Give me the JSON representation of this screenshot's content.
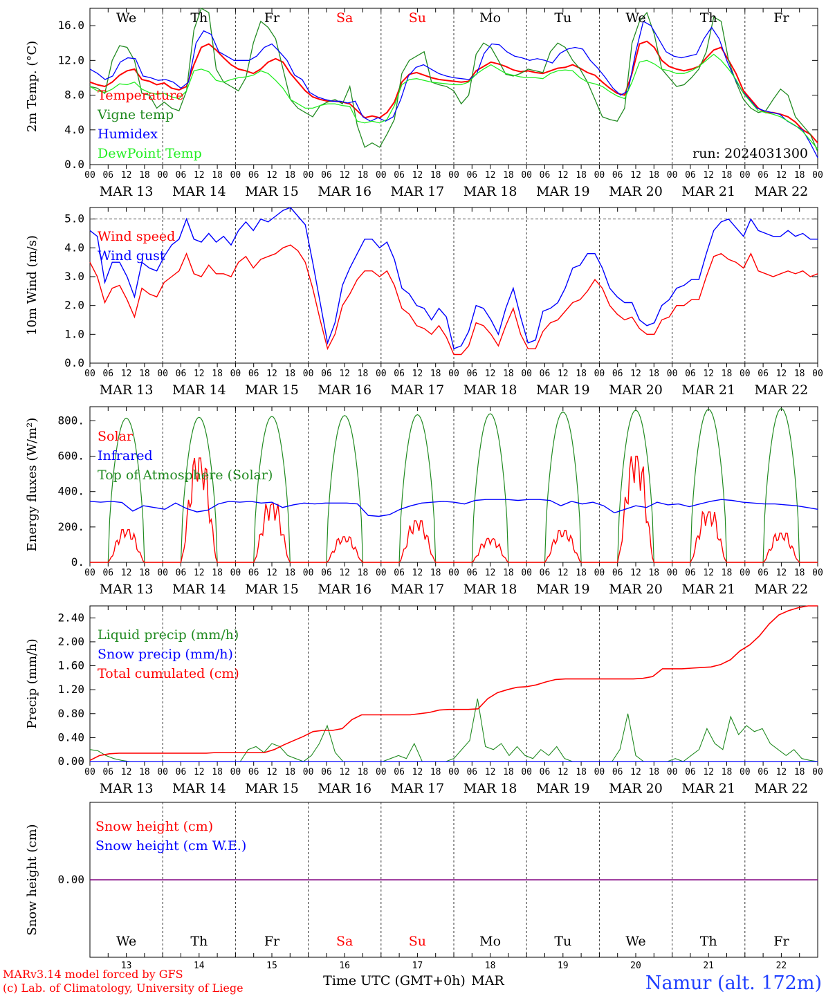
{
  "days": [
    "MAR 13",
    "MAR 14",
    "MAR 15",
    "MAR 16",
    "MAR 17",
    "MAR 18",
    "MAR 19",
    "MAR 20",
    "MAR 21",
    "MAR 22"
  ],
  "day_numbers": [
    "13",
    "14",
    "15",
    "16",
    "17",
    "18",
    "19",
    "20",
    "21",
    "22"
  ],
  "weekdays": [
    "We",
    "Th",
    "Fr",
    "Sa",
    "Su",
    "Mo",
    "Tu",
    "We",
    "Th",
    "Fr"
  ],
  "hour_ticks": [
    "00",
    "06",
    "12",
    "18"
  ],
  "weekday_colors": [
    "#000000",
    "#000000",
    "#000000",
    "#ff0000",
    "#ff0000",
    "#000000",
    "#000000",
    "#000000",
    "#000000",
    "#000000"
  ],
  "run_label": "run: 2024031300",
  "footer": {
    "credit1": "MARv3.14 model forced by GFS",
    "credit2": "(c) Lab. of Climatology, University of Liege",
    "xlabel": "Time UTC (GMT+0h)",
    "month": "MAR",
    "station": "Namur (alt. 172m)"
  },
  "colors": {
    "red": "#ff0000",
    "darkgreen": "#228b22",
    "blue": "#0000ff",
    "lightgreen": "#22ee22",
    "purple": "#800080"
  },
  "chart_data": [
    {
      "type": "line",
      "ylabel": "2m Temp. (°C)",
      "ylim": [
        0,
        18
      ],
      "yticks": [
        0,
        4,
        8,
        12,
        16
      ],
      "ytick_labels": [
        "0.0",
        "4.0",
        "8.0",
        "12.0",
        "16.0"
      ],
      "series": [
        {
          "name": "Temperature",
          "color": "#ff0000",
          "values": [
            9.5,
            9.2,
            9.0,
            9.5,
            10.3,
            10.8,
            11.0,
            9.8,
            9.6,
            9.2,
            9.4,
            8.8,
            8.6,
            9.0,
            11.5,
            13.5,
            13.9,
            13.2,
            12.3,
            11.5,
            11.0,
            10.8,
            10.5,
            11.0,
            11.8,
            12.2,
            11.8,
            10.5,
            9.5,
            8.5,
            7.8,
            7.5,
            7.3,
            7.3,
            7.2,
            7.0,
            6.2,
            5.4,
            5.6,
            5.4,
            6.0,
            7.2,
            9.5,
            10.4,
            10.6,
            10.3,
            10.0,
            9.8,
            9.7,
            9.6,
            9.5,
            9.6,
            10.8,
            11.3,
            11.8,
            11.6,
            11.3,
            10.9,
            10.7,
            10.8,
            10.6,
            10.5,
            10.8,
            11.1,
            11.2,
            11.5,
            11.1,
            10.6,
            10.3,
            9.5,
            8.8,
            8.2,
            8.0,
            10.5,
            13.9,
            14.2,
            13.5,
            12.0,
            11.3,
            11.0,
            10.8,
            11.0,
            11.3,
            12.3,
            13.2,
            13.5,
            12.0,
            10.5,
            8.5,
            7.5,
            6.5,
            6.0,
            6.0,
            5.8,
            5.5,
            4.9,
            4.0,
            3.5,
            2.5
          ]
        },
        {
          "name": "Vigne temp",
          "color": "#228b22",
          "values": [
            9.0,
            8.8,
            8.2,
            12.0,
            13.7,
            13.5,
            12.0,
            8.2,
            8.0,
            6.5,
            7.2,
            6.5,
            6.2,
            8.5,
            15.5,
            18.0,
            17.5,
            11.0,
            9.5,
            9.0,
            8.5,
            10.0,
            14.0,
            16.5,
            15.8,
            14.5,
            11.0,
            7.5,
            6.5,
            6.0,
            5.5,
            6.8,
            7.2,
            7.5,
            7.0,
            9.0,
            4.5,
            2.0,
            2.5,
            2.0,
            3.5,
            5.2,
            10.5,
            12.0,
            12.5,
            13.0,
            9.5,
            9.2,
            9.0,
            8.5,
            7.0,
            8.0,
            12.7,
            14.0,
            13.5,
            12.0,
            10.4,
            10.2,
            10.5,
            11.0,
            10.8,
            10.6,
            13.0,
            14.0,
            13.5,
            12.0,
            11.0,
            9.5,
            7.5,
            5.5,
            5.2,
            5.0,
            6.5,
            14.0,
            16.5,
            17.5,
            15.0,
            11.0,
            10.0,
            9.0,
            9.2,
            10.0,
            11.0,
            13.0,
            17.0,
            16.5,
            12.0,
            9.5,
            7.5,
            6.5,
            6.0,
            6.2,
            7.5,
            8.7,
            8.0,
            5.5,
            4.5,
            3.5,
            1.5
          ]
        },
        {
          "name": "Humidex",
          "color": "#0000ff",
          "values": [
            11.0,
            10.5,
            9.8,
            10.2,
            11.8,
            12.3,
            12.2,
            10.2,
            10.0,
            9.7,
            9.8,
            9.5,
            8.8,
            9.5,
            14.0,
            15.4,
            15.0,
            13.0,
            12.5,
            12.0,
            12.0,
            12.0,
            12.5,
            13.5,
            13.9,
            13.0,
            12.0,
            10.3,
            9.8,
            8.3,
            7.8,
            7.5,
            7.3,
            7.3,
            7.1,
            7.3,
            5.5,
            5.0,
            5.4,
            5.0,
            5.5,
            7.5,
            10.2,
            11.2,
            11.5,
            11.0,
            10.5,
            10.2,
            10.0,
            9.9,
            9.8,
            10.4,
            12.8,
            13.9,
            13.8,
            13.0,
            12.5,
            12.3,
            12.0,
            12.2,
            12.0,
            11.7,
            12.8,
            13.3,
            13.5,
            13.3,
            12.0,
            11.1,
            10.0,
            8.8,
            8.0,
            8.5,
            13.0,
            16.5,
            16.0,
            14.5,
            13.0,
            12.5,
            12.3,
            12.5,
            12.7,
            14.5,
            15.8,
            14.5,
            12.0,
            10.0,
            8.5,
            7.5,
            6.5,
            6.2,
            6.0,
            5.8,
            5.0,
            4.5,
            4.0,
            2.5,
            0.8
          ]
        },
        {
          "name": "DewPoint Temp",
          "color": "#22ee22",
          "values": [
            9.0,
            8.5,
            8.3,
            8.7,
            9.3,
            9.2,
            9.5,
            8.7,
            8.3,
            8.1,
            8.2,
            7.8,
            7.6,
            8.5,
            10.8,
            11.0,
            10.7,
            9.7,
            9.5,
            9.8,
            10.0,
            10.1,
            10.3,
            10.8,
            10.5,
            9.7,
            8.8,
            7.5,
            7.0,
            6.5,
            6.5,
            6.8,
            7.0,
            7.0,
            6.8,
            6.7,
            5.0,
            4.8,
            5.0,
            4.8,
            5.2,
            6.8,
            9.2,
            9.8,
            9.9,
            9.7,
            9.5,
            9.4,
            9.3,
            9.2,
            9.2,
            9.5,
            10.4,
            11.0,
            11.5,
            11.0,
            10.5,
            10.3,
            10.1,
            10.0,
            10.0,
            9.9,
            10.5,
            10.8,
            10.9,
            10.8,
            10.0,
            9.5,
            9.3,
            9.0,
            8.4,
            7.9,
            7.6,
            9.5,
            11.8,
            12.0,
            11.6,
            11.0,
            10.8,
            10.5,
            10.5,
            10.8,
            11.3,
            12.0,
            12.7,
            12.0,
            11.0,
            9.8,
            8.2,
            7.2,
            6.2,
            6.0,
            5.8,
            5.5,
            5.0,
            4.5,
            3.8,
            2.8,
            1.8
          ]
        }
      ],
      "legend": [
        "Temperature",
        "Vigne temp",
        "Humidex",
        "DewPoint Temp"
      ]
    },
    {
      "type": "line",
      "ylabel": "10m Wind (m/s)",
      "ylim": [
        0,
        5.4
      ],
      "yticks": [
        0,
        1,
        2,
        3,
        4,
        5
      ],
      "ytick_labels": [
        "0.0",
        "1.0",
        "2.0",
        "3.0",
        "4.0",
        "5.0"
      ],
      "series": [
        {
          "name": "Wind speed",
          "color": "#ff0000",
          "values": [
            3.5,
            3.0,
            2.1,
            2.6,
            2.7,
            2.2,
            1.6,
            2.6,
            2.4,
            2.3,
            2.8,
            3.0,
            3.2,
            3.8,
            3.1,
            3.0,
            3.4,
            3.1,
            3.1,
            3.0,
            3.5,
            3.7,
            3.3,
            3.6,
            3.7,
            3.8,
            4.0,
            4.1,
            3.9,
            3.5,
            2.6,
            1.5,
            0.5,
            1.0,
            2.0,
            2.4,
            2.9,
            3.2,
            3.2,
            3.0,
            3.2,
            2.7,
            1.9,
            1.7,
            1.3,
            1.2,
            1.0,
            1.3,
            0.9,
            0.3,
            0.3,
            0.6,
            1.4,
            1.3,
            1.0,
            0.6,
            1.3,
            1.9,
            1.0,
            0.5,
            0.5,
            1.1,
            1.4,
            1.5,
            1.8,
            2.1,
            2.2,
            2.5,
            2.9,
            2.6,
            2.0,
            1.7,
            1.5,
            1.6,
            1.2,
            1.0,
            1.0,
            1.5,
            1.6,
            2.0,
            2.0,
            2.2,
            2.2,
            3.0,
            3.7,
            3.8,
            3.6,
            3.5,
            3.3,
            3.8,
            3.2,
            3.1,
            3.0,
            3.1,
            3.2,
            3.1,
            3.2,
            3.0,
            3.1
          ]
        },
        {
          "name": "Wind gust",
          "color": "#0000ff",
          "values": [
            4.6,
            4.4,
            2.8,
            3.5,
            3.5,
            3.0,
            2.3,
            3.5,
            3.3,
            3.2,
            3.7,
            4.1,
            4.3,
            5.0,
            4.3,
            4.2,
            4.5,
            4.2,
            4.4,
            4.1,
            4.6,
            4.9,
            4.6,
            5.0,
            4.9,
            5.1,
            5.3,
            5.4,
            5.1,
            4.8,
            3.5,
            2.1,
            0.7,
            1.4,
            2.7,
            3.3,
            3.8,
            4.3,
            4.3,
            4.0,
            4.2,
            3.6,
            2.6,
            2.4,
            2.0,
            1.9,
            1.5,
            1.9,
            1.6,
            0.5,
            0.6,
            1.1,
            2.0,
            1.9,
            1.5,
            1.0,
            1.9,
            2.6,
            1.6,
            0.7,
            0.8,
            1.8,
            1.9,
            2.1,
            2.6,
            3.3,
            3.4,
            3.8,
            3.8,
            3.3,
            2.6,
            2.3,
            2.1,
            2.1,
            1.5,
            1.3,
            1.4,
            2.0,
            2.2,
            2.6,
            2.7,
            2.9,
            2.9,
            3.8,
            4.6,
            4.9,
            5.0,
            4.7,
            4.4,
            5.0,
            4.6,
            4.5,
            4.4,
            4.4,
            4.6,
            4.4,
            4.5,
            4.3,
            4.3
          ]
        }
      ],
      "reference_line": 5.0,
      "legend": [
        "Wind speed",
        "Wind gust"
      ]
    },
    {
      "type": "line",
      "ylabel": "Energy fluxes (W/m²)",
      "ylim": [
        0,
        880
      ],
      "yticks": [
        0,
        200,
        400,
        600,
        800
      ],
      "ytick_labels": [
        "0.",
        "200.",
        "400.",
        "600.",
        "800."
      ],
      "series": [
        {
          "name": "Solar",
          "color": "#ff0000",
          "peaks": [
            185,
            590,
            330,
            145,
            235,
            135,
            180,
            600,
            285,
            165
          ]
        },
        {
          "name": "Infrared",
          "color": "#0000ff",
          "values": [
            345,
            340,
            345,
            338,
            290,
            320,
            310,
            300,
            335,
            305,
            285,
            295,
            330,
            345,
            340,
            345,
            335,
            340,
            310,
            325,
            335,
            330,
            335,
            335,
            335,
            330,
            265,
            260,
            270,
            300,
            320,
            335,
            340,
            345,
            340,
            330,
            350,
            355,
            355,
            355,
            350,
            355,
            355,
            350,
            320,
            345,
            330,
            340,
            320,
            280,
            300,
            320,
            310,
            340,
            325,
            330,
            315,
            330,
            345,
            355,
            350,
            340,
            335,
            330,
            330,
            325,
            320,
            310,
            300
          ]
        },
        {
          "name": "Top of Atmosphere (Solar)",
          "color": "#228b22",
          "peaks": [
            815,
            820,
            825,
            830,
            835,
            840,
            850,
            860,
            865,
            870
          ]
        }
      ],
      "legend": [
        "Solar",
        "Infrared",
        "Top of Atmosphere (Solar)"
      ]
    },
    {
      "type": "line",
      "ylabel": "Precip (mm/h)",
      "ylim": [
        0,
        2.6
      ],
      "yticks": [
        0,
        0.4,
        0.8,
        1.2,
        1.6,
        2.0,
        2.4
      ],
      "ytick_labels": [
        "0.00",
        "0.40",
        "0.80",
        "1.20",
        "1.60",
        "2.00",
        "2.40"
      ],
      "series": [
        {
          "name": "Liquid precip (mm/h)",
          "color": "#228b22",
          "values": [
            0.2,
            0.18,
            0.1,
            0.05,
            0.02,
            0,
            0,
            0,
            0,
            0,
            0,
            0,
            0,
            0,
            0,
            0,
            0,
            0,
            0,
            0,
            0.2,
            0.25,
            0.15,
            0.3,
            0.25,
            0.1,
            0.05,
            0,
            0.1,
            0.3,
            0.6,
            0.15,
            0,
            0,
            0,
            0,
            0,
            0,
            0.05,
            0.1,
            0.05,
            0.3,
            0,
            0,
            0,
            0,
            0.05,
            0.2,
            0.35,
            1.05,
            0.25,
            0.2,
            0.3,
            0.1,
            0.25,
            0.1,
            0.05,
            0.2,
            0.1,
            0.25,
            0.05,
            0,
            0,
            0,
            0,
            0,
            0,
            0.2,
            0.8,
            0.1,
            0,
            0,
            0,
            0,
            0.05,
            0,
            0.1,
            0.2,
            0.55,
            0.3,
            0.2,
            0.75,
            0.45,
            0.6,
            0.5,
            0.55,
            0.3,
            0.2,
            0.1,
            0.2,
            0.05,
            0.02,
            0
          ]
        },
        {
          "name": "Snow precip (mm/h)",
          "color": "#0000ff",
          "values": [
            0,
            0
          ]
        },
        {
          "name": "Total cumulated (cm)",
          "color": "#ff0000",
          "values": [
            0.02,
            0.1,
            0.13,
            0.14,
            0.14,
            0.14,
            0.14,
            0.14,
            0.14,
            0.14,
            0.14,
            0.14,
            0.14,
            0.15,
            0.15,
            0.15,
            0.15,
            0.15,
            0.15,
            0.2,
            0.28,
            0.35,
            0.42,
            0.5,
            0.52,
            0.52,
            0.55,
            0.7,
            0.78,
            0.78,
            0.78,
            0.78,
            0.78,
            0.78,
            0.8,
            0.82,
            0.86,
            0.87,
            0.87,
            0.87,
            0.88,
            1.05,
            1.15,
            1.2,
            1.24,
            1.25,
            1.28,
            1.33,
            1.37,
            1.38,
            1.38,
            1.38,
            1.38,
            1.38,
            1.38,
            1.38,
            1.38,
            1.39,
            1.42,
            1.55,
            1.55,
            1.55,
            1.56,
            1.57,
            1.58,
            1.62,
            1.7,
            1.85,
            1.95,
            2.1,
            2.3,
            2.45,
            2.52,
            2.57,
            2.6,
            2.6
          ]
        }
      ],
      "legend": [
        "Liquid precip (mm/h)",
        "Snow precip (mm/h)",
        "Total cumulated (cm)"
      ]
    },
    {
      "type": "line",
      "ylabel": "Snow height (cm)",
      "ylim": [
        -1,
        1
      ],
      "yticks": [
        0
      ],
      "ytick_labels": [
        "0.00"
      ],
      "series": [
        {
          "name": "Snow height (cm)",
          "color": "#ff0000",
          "values": [
            0,
            0
          ]
        },
        {
          "name": "Snow height (cm W.E.)",
          "color": "#0000ff",
          "values": [
            0,
            0
          ]
        }
      ],
      "legend": [
        "Snow height (cm)",
        "Snow height (cm W.E.)"
      ]
    }
  ]
}
